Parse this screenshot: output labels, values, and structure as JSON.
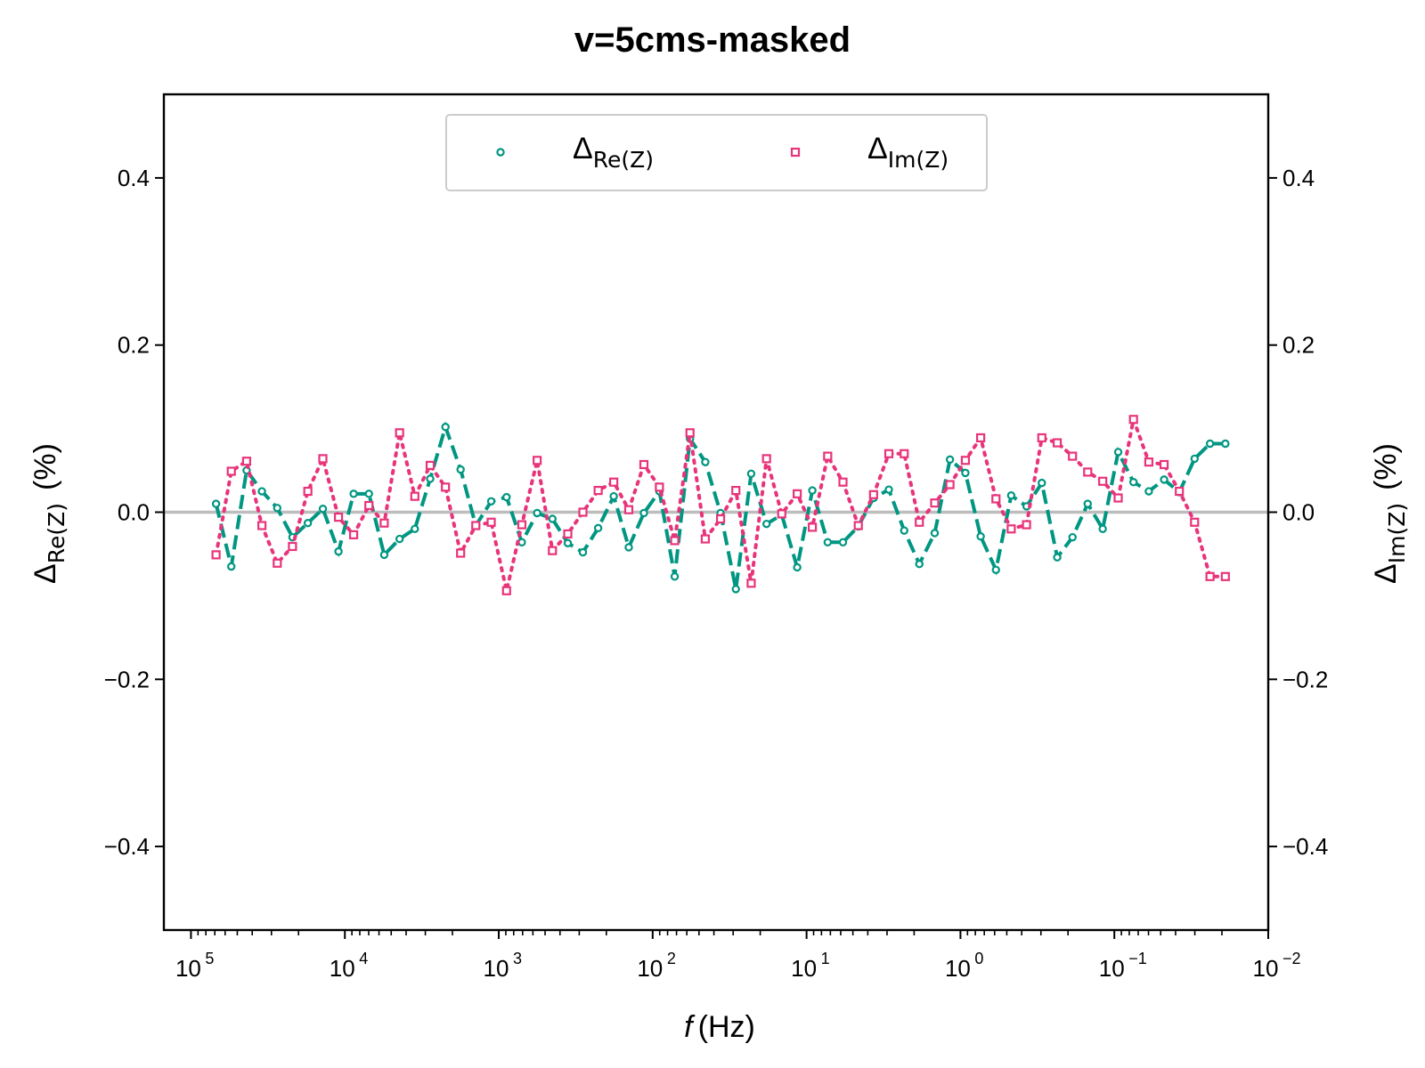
{
  "chart_data": {
    "type": "line",
    "title": "v=5cms-masked",
    "xlabel": {
      "var": "f",
      "unit": "(Hz)"
    },
    "ylabel_left": {
      "main": "Δ",
      "sub": "Re(Z)",
      "unit": "(%)"
    },
    "ylabel_right": {
      "main": "Δ",
      "sub": "Im(Z)",
      "unit": "(%)"
    },
    "x_scale": "log",
    "x_inverted": true,
    "xlim": [
      150000,
      0.01
    ],
    "ylim": [
      -0.5,
      0.5
    ],
    "x_ticks": [
      {
        "base": "10",
        "exp": "5"
      },
      {
        "base": "10",
        "exp": "4"
      },
      {
        "base": "10",
        "exp": "3"
      },
      {
        "base": "10",
        "exp": "2"
      },
      {
        "base": "10",
        "exp": "1"
      },
      {
        "base": "10",
        "exp": "0"
      },
      {
        "base": "10",
        "exp": "−1"
      },
      {
        "base": "10",
        "exp": "−2"
      }
    ],
    "y_ticks": [
      "−0.4",
      "−0.2",
      "0.0",
      "0.2",
      "0.4"
    ],
    "y_tick_values": [
      -0.4,
      -0.2,
      0.0,
      0.2,
      0.4
    ],
    "zero_line": true,
    "legend_position": "upper center",
    "x": [
      68700,
      54700,
      43500,
      34600,
      27500,
      21900,
      17400,
      13900,
      11000,
      8770,
      6980,
      5550,
      4410,
      3510,
      2790,
      2220,
      1770,
      1410,
      1120,
      890,
      708,
      563,
      448,
      356,
      284,
      226,
      179,
      143,
      114,
      90.4,
      71.9,
      57.2,
      45.5,
      36.2,
      28.8,
      22.9,
      18.2,
      14.5,
      11.5,
      9.17,
      7.29,
      5.8,
      4.61,
      3.67,
      2.92,
      2.32,
      1.85,
      1.47,
      1.17,
      0.929,
      0.739,
      0.588,
      0.468,
      0.372,
      0.296,
      0.235,
      0.187,
      0.149,
      0.119,
      0.0944,
      0.0751,
      0.0597,
      0.0475,
      0.0378,
      0.0301,
      0.0239,
      0.019
    ],
    "series": [
      {
        "name": "Re(Z)",
        "color": "#009682",
        "line_style": "dashed",
        "marker": "circle",
        "values": [
          0.01,
          -0.065,
          0.05,
          0.025,
          0.005,
          -0.03,
          -0.013,
          0.004,
          -0.047,
          0.022,
          0.022,
          -0.051,
          -0.032,
          -0.02,
          0.04,
          0.102,
          0.051,
          -0.016,
          0.013,
          0.018,
          -0.036,
          -0.001,
          -0.008,
          -0.037,
          -0.048,
          -0.019,
          0.019,
          -0.042,
          -0.001,
          0.025,
          -0.077,
          0.088,
          0.06,
          -0.001,
          -0.092,
          0.046,
          -0.014,
          -0.003,
          -0.066,
          0.026,
          -0.036,
          -0.036,
          -0.017,
          0.017,
          0.027,
          -0.022,
          -0.062,
          -0.025,
          0.063,
          0.047,
          -0.029,
          -0.069,
          0.02,
          0.007,
          0.035,
          -0.054,
          -0.03,
          0.01,
          -0.02,
          0.072,
          0.036,
          0.025,
          0.039,
          0.024,
          0.064,
          0.082,
          0.082
        ]
      },
      {
        "name": "Im(Z)",
        "color": "#E8347A",
        "line_style": "dotted",
        "marker": "square",
        "values": [
          -0.051,
          0.049,
          0.061,
          -0.016,
          -0.061,
          -0.041,
          0.025,
          0.064,
          -0.006,
          -0.027,
          0.008,
          -0.013,
          0.095,
          0.019,
          0.056,
          0.03,
          -0.049,
          -0.016,
          -0.012,
          -0.094,
          -0.015,
          0.062,
          -0.046,
          -0.026,
          0.0,
          0.026,
          0.036,
          0.003,
          0.057,
          0.03,
          -0.034,
          0.095,
          -0.032,
          -0.008,
          0.026,
          -0.085,
          0.064,
          -0.002,
          0.022,
          -0.018,
          0.067,
          0.036,
          -0.016,
          0.021,
          0.07,
          0.07,
          -0.012,
          0.011,
          0.033,
          0.062,
          0.089,
          0.016,
          -0.02,
          -0.015,
          0.089,
          0.083,
          0.067,
          0.048,
          0.037,
          0.017,
          0.111,
          0.06,
          0.057,
          0.025,
          -0.012,
          -0.077,
          -0.077
        ]
      }
    ]
  }
}
